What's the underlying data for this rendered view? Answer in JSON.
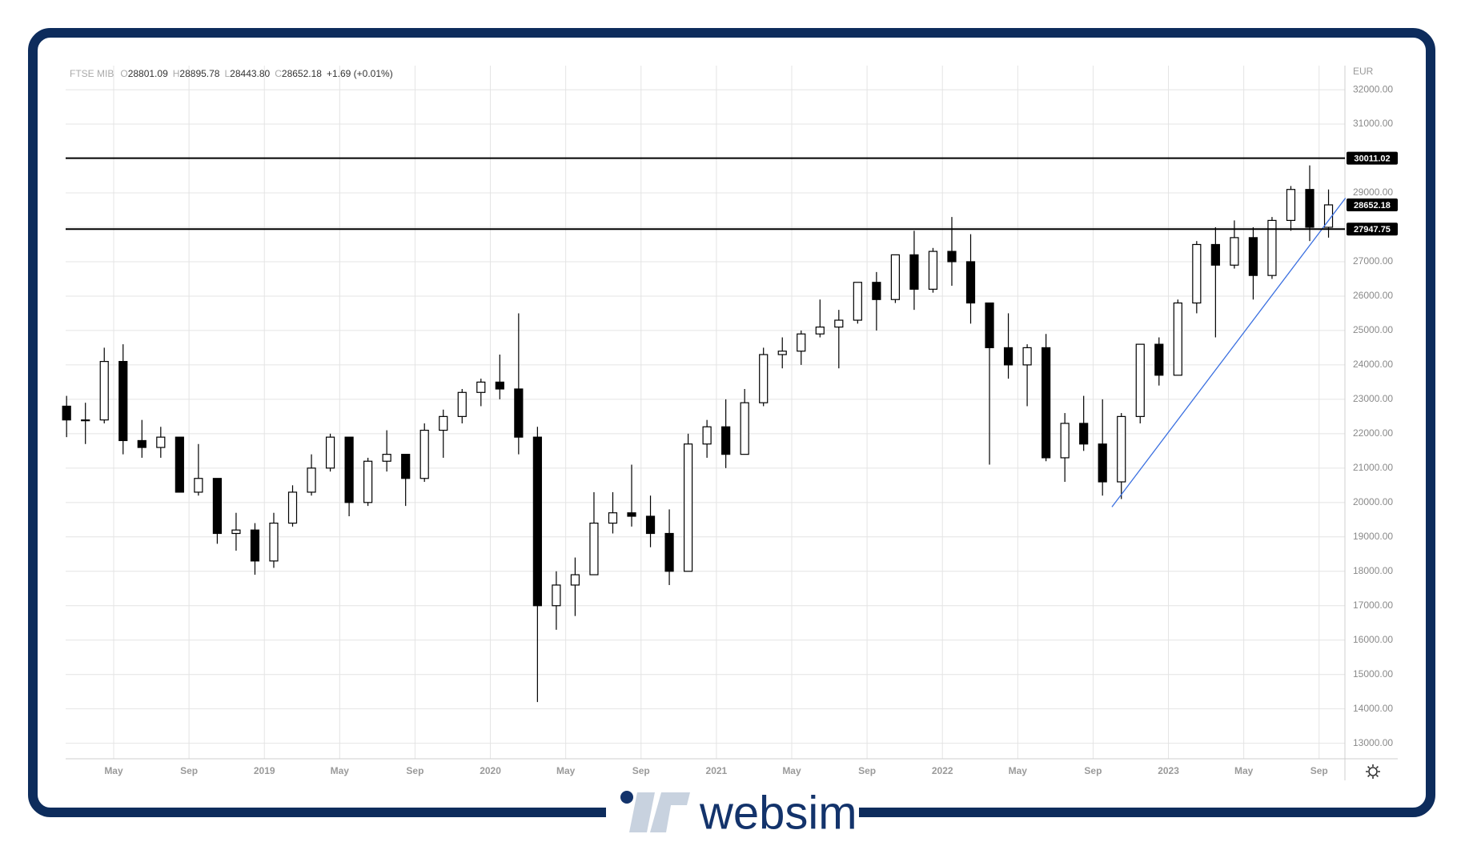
{
  "chart_data": {
    "type": "candlestick",
    "title": "FTSE MIB",
    "header": [
      {
        "label": "O",
        "value": "28801.09"
      },
      {
        "label": "H",
        "value": "28895.78"
      },
      {
        "label": "L",
        "value": "28443.80"
      },
      {
        "label": "C",
        "value": "28652.18"
      }
    ],
    "change": "+1.69 (+0.01%)",
    "currency": "EUR",
    "x": [
      1.5,
      2.5,
      3.5,
      4.5,
      5.5,
      6.5,
      7.5,
      8.5,
      9.5,
      10.5,
      11.5,
      12.5,
      13.5,
      14.5,
      15.5,
      16.5,
      17.5,
      18.5,
      19.5,
      20.5,
      21.5,
      22.5,
      23.5,
      24.5,
      25.5,
      26.5,
      27.5,
      28.5,
      29.5,
      30.5,
      31.5,
      32.5,
      33.5,
      34.5,
      35.5,
      36.5,
      37.5,
      38.5,
      39.5,
      40.5,
      41.5,
      42.5,
      43.5,
      44.5,
      45.5,
      46.5,
      47.5,
      48.5,
      49.5,
      50.5,
      51.5,
      52.5,
      53.5,
      54.5,
      55.5,
      56.5,
      57.5,
      58.5,
      59.5,
      60.5,
      61.5,
      62.5,
      63.5,
      64.5,
      65.5,
      66.5,
      67.5,
      68.5
    ],
    "open": [
      22800,
      22400,
      22400,
      24100,
      21800,
      21600,
      21900,
      20300,
      20700,
      19100,
      19200,
      18300,
      19400,
      20300,
      21000,
      21900,
      20000,
      21200,
      21400,
      20700,
      22100,
      22500,
      23200,
      23500,
      23300,
      21900,
      17000,
      17600,
      17900,
      19400,
      19700,
      19600,
      19100,
      18000,
      21700,
      22200,
      21400,
      22900,
      24300,
      24400,
      24900,
      25100,
      25300,
      26400,
      25900,
      27200,
      26200,
      27300,
      27000,
      25800,
      24500,
      24000,
      24500,
      21300,
      22300,
      21700,
      20600,
      22500,
      24600,
      23700,
      25800,
      27500,
      26900,
      27700,
      26600,
      28200,
      29100,
      28000
    ],
    "high": [
      23100,
      22900,
      24500,
      24600,
      22400,
      22200,
      21900,
      21700,
      20700,
      19700,
      19400,
      19700,
      20500,
      21400,
      22000,
      21900,
      21300,
      22100,
      21400,
      22300,
      22700,
      23300,
      23600,
      24300,
      25500,
      22200,
      18000,
      18400,
      20300,
      20300,
      21100,
      20200,
      19800,
      22000,
      22400,
      23000,
      23300,
      24500,
      24800,
      25000,
      25900,
      25600,
      26400,
      26700,
      27200,
      27900,
      27400,
      28300,
      27800,
      25800,
      25500,
      24600,
      24900,
      22600,
      23100,
      23000,
      22600,
      24600,
      24800,
      25900,
      27600,
      28000,
      28200,
      28000,
      28300,
      29200,
      29800,
      29100
    ],
    "low": [
      21900,
      21700,
      22300,
      21400,
      21300,
      21300,
      20300,
      20200,
      18800,
      18600,
      17900,
      18100,
      19300,
      20200,
      20900,
      19600,
      19900,
      20900,
      19900,
      20600,
      21300,
      22300,
      22800,
      23000,
      21400,
      14200,
      16300,
      16700,
      17900,
      19100,
      19300,
      18700,
      17600,
      18000,
      21300,
      21000,
      21400,
      22800,
      23900,
      24000,
      24800,
      23900,
      25200,
      25000,
      25800,
      25600,
      26100,
      26300,
      25200,
      21100,
      23600,
      22800,
      21200,
      20600,
      21500,
      20200,
      20100,
      22300,
      23400,
      23700,
      25500,
      24800,
      26800,
      25900,
      26500,
      27900,
      27600,
      27700
    ],
    "close": [
      22400,
      22400,
      24100,
      21800,
      21600,
      21900,
      20300,
      20700,
      19100,
      19200,
      18300,
      19400,
      20300,
      21000,
      21900,
      20000,
      21200,
      21400,
      20700,
      22100,
      22500,
      23200,
      23500,
      23300,
      21900,
      17000,
      17600,
      17900,
      19400,
      19700,
      19600,
      19100,
      18000,
      21700,
      22200,
      21400,
      22900,
      24300,
      24400,
      24900,
      25100,
      25300,
      26400,
      25900,
      27200,
      26200,
      27300,
      27000,
      25800,
      24500,
      24000,
      24500,
      21300,
      22300,
      21700,
      20600,
      22500,
      24600,
      23700,
      25800,
      27500,
      26900,
      27700,
      26600,
      28200,
      29100,
      28000,
      28652.18
    ],
    "color": "#000000",
    "xlim": [
      1.45,
      69.37
    ],
    "xticks": [
      {
        "value": 4,
        "label": "May"
      },
      {
        "value": 8,
        "label": "Sep"
      },
      {
        "value": 12,
        "label": "2019"
      },
      {
        "value": 16,
        "label": "May"
      },
      {
        "value": 20,
        "label": "Sep"
      },
      {
        "value": 24,
        "label": "2020"
      },
      {
        "value": 28,
        "label": "May"
      },
      {
        "value": 32,
        "label": "Sep"
      },
      {
        "value": 36,
        "label": "2021"
      },
      {
        "value": 40,
        "label": "May"
      },
      {
        "value": 44,
        "label": "Sep"
      },
      {
        "value": 48,
        "label": "2022"
      },
      {
        "value": 52,
        "label": "May"
      },
      {
        "value": 56,
        "label": "Sep"
      },
      {
        "value": 60,
        "label": "2023"
      },
      {
        "value": 64,
        "label": "May"
      },
      {
        "value": 68,
        "label": "Sep"
      }
    ],
    "ylim": [
      12550,
      32700
    ],
    "yticks": [
      {
        "value": 13000,
        "label": "13000.00"
      },
      {
        "value": 14000,
        "label": "14000.00"
      },
      {
        "value": 15000,
        "label": "15000.00"
      },
      {
        "value": 16000,
        "label": "16000.00"
      },
      {
        "value": 17000,
        "label": "17000.00"
      },
      {
        "value": 18000,
        "label": "18000.00"
      },
      {
        "value": 19000,
        "label": "19000.00"
      },
      {
        "value": 20000,
        "label": "20000.00"
      },
      {
        "value": 21000,
        "label": "21000.00"
      },
      {
        "value": 22000,
        "label": "22000.00"
      },
      {
        "value": 23000,
        "label": "23000.00"
      },
      {
        "value": 24000,
        "label": "24000.00"
      },
      {
        "value": 25000,
        "label": "25000.00"
      },
      {
        "value": 26000,
        "label": "26000.00"
      },
      {
        "value": 27000,
        "label": "27000.00"
      },
      {
        "value": 28000,
        "label": "28000.00"
      },
      {
        "value": 29000,
        "label": "29000.00"
      },
      {
        "value": 30000,
        "label": "30000.00"
      },
      {
        "value": 31000,
        "label": "31000.00"
      },
      {
        "value": 32000,
        "label": "32000.00"
      }
    ],
    "grid": true,
    "hlines": [
      {
        "value": 30011.02,
        "color": "#000000"
      },
      {
        "value": 27947.75,
        "color": "#000000"
      }
    ],
    "last_price": 28652.18,
    "trendline": {
      "x": [
        57,
        69.4
      ],
      "y": [
        19870,
        28850
      ],
      "color": "#3a6fe0"
    }
  },
  "branding": "websim"
}
